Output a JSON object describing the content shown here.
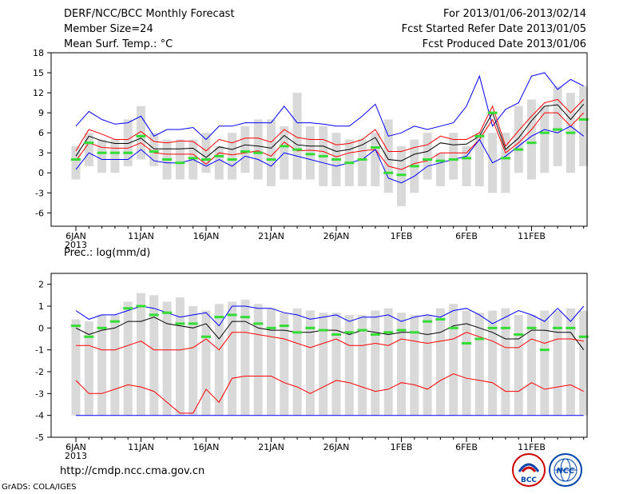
{
  "header": {
    "title": "DERF/NCC/BCC Monthly Forecast",
    "member_size": "Member Size=24",
    "variable": "Mean Surf. Temp.: °C",
    "period": "For 2013/01/06-2013/02/14",
    "started": "Fcst Started Refer Date 2013/01/05",
    "produced": "Fcst Produced Date 2013/01/06"
  },
  "footer": {
    "url": "http://cmdp.ncc.cma.gov.cn",
    "grads": "GrADS: COLA/IGES",
    "logo_left_text": "BCC",
    "logo_right_text": "NCC"
  },
  "colors": {
    "bar": "#d9d9d9",
    "max_line": "#0000ff",
    "min_line": "#0000ff",
    "upper_line": "#ff0000",
    "lower_line": "#ff0000",
    "mean_line": "#000000",
    "marker": "#33dd33"
  },
  "chart_data": [
    {
      "type": "bar",
      "title": "Mean Surf. Temp.: °C",
      "xlabel": "",
      "ylabel": "",
      "ylim": [
        -8,
        18
      ],
      "yticks": [
        -6,
        -3,
        0,
        3,
        6,
        9,
        12,
        15,
        18
      ],
      "x_ticks": [
        {
          "day": 1,
          "label": "6JAN",
          "year": "2013"
        },
        {
          "day": 6,
          "label": "11JAN"
        },
        {
          "day": 11,
          "label": "16JAN"
        },
        {
          "day": 16,
          "label": "21JAN"
        },
        {
          "day": 21,
          "label": "26JAN"
        },
        {
          "day": 26,
          "label": "1FEB"
        },
        {
          "day": 31,
          "label": "6FEB"
        },
        {
          "day": 36,
          "label": "11FEB"
        }
      ],
      "days": [
        1,
        2,
        3,
        4,
        5,
        6,
        7,
        8,
        9,
        10,
        11,
        12,
        13,
        14,
        15,
        16,
        17,
        18,
        19,
        20,
        21,
        22,
        23,
        24,
        25,
        26,
        27,
        28,
        29,
        30,
        31,
        32,
        33,
        34,
        35,
        36,
        37,
        38,
        39,
        40
      ],
      "bar_top": [
        4,
        6,
        5,
        5,
        8,
        10,
        6,
        5,
        5,
        5,
        6,
        4,
        6,
        7,
        8,
        8,
        7,
        12,
        7,
        7,
        6,
        5,
        5,
        6,
        8,
        4,
        5,
        6,
        3,
        6,
        4,
        6,
        6,
        6,
        10,
        11,
        10,
        13,
        12,
        13
      ],
      "bar_bottom": [
        -1,
        1,
        0,
        0,
        1,
        2,
        1,
        -1,
        -1,
        -1,
        0,
        -1,
        -1,
        0,
        -1,
        -2,
        -1,
        -1,
        -1,
        -2,
        -2,
        -2,
        -2,
        -2,
        -3,
        -5,
        -3,
        -1,
        -2,
        -1,
        -2,
        -2,
        -3,
        -3,
        0,
        -1,
        0,
        1,
        0,
        1
      ],
      "series": [
        {
          "name": "max",
          "color": "#0000ff",
          "values": [
            7.0,
            9.2,
            8.0,
            7.3,
            7.5,
            8.5,
            5.5,
            6.5,
            6.5,
            6.8,
            5.0,
            7.0,
            7.0,
            7.5,
            7.5,
            7.5,
            10.0,
            7.5,
            7.5,
            7.3,
            7.0,
            7.0,
            8.5,
            10.3,
            5.5,
            6.0,
            7.0,
            6.5,
            7.0,
            7.5,
            10.0,
            14.5,
            7.0,
            9.5,
            10.5,
            14.5,
            15.0,
            12.5,
            14.0,
            13.0
          ]
        },
        {
          "name": "upper",
          "color": "#ff0000",
          "values": [
            3.3,
            6.5,
            5.8,
            5.0,
            5.0,
            6.2,
            4.7,
            4.5,
            4.8,
            4.7,
            3.3,
            5.0,
            4.5,
            5.2,
            5.2,
            4.6,
            6.5,
            5.3,
            5.0,
            5.0,
            4.2,
            4.4,
            5.0,
            6.5,
            3.2,
            3.2,
            3.8,
            4.2,
            5.5,
            5.0,
            5.0,
            6.0,
            10.0,
            4.0,
            6.3,
            8.5,
            10.5,
            11.0,
            9.0,
            11.0
          ]
        },
        {
          "name": "mean",
          "color": "#000000",
          "values": [
            2.5,
            5.5,
            4.8,
            4.4,
            4.4,
            5.2,
            3.6,
            3.6,
            3.6,
            3.7,
            2.3,
            3.9,
            3.5,
            4.2,
            4.0,
            3.7,
            5.6,
            4.2,
            4.0,
            4.0,
            3.2,
            3.5,
            4.2,
            5.3,
            2.0,
            1.8,
            2.8,
            3.2,
            4.5,
            4.2,
            4.3,
            5.5,
            9.0,
            3.5,
            5.2,
            7.8,
            10.0,
            10.2,
            8.0,
            10.3
          ]
        },
        {
          "name": "lower",
          "color": "#ff0000",
          "values": [
            1.8,
            4.5,
            3.8,
            3.7,
            3.7,
            4.5,
            3.0,
            2.8,
            2.8,
            2.8,
            1.3,
            3.0,
            2.7,
            3.0,
            3.3,
            2.5,
            4.6,
            3.3,
            3.4,
            3.2,
            2.4,
            3.0,
            3.3,
            3.5,
            1.0,
            0.5,
            1.4,
            1.8,
            3.0,
            3.0,
            3.0,
            5.0,
            8.0,
            3.0,
            4.5,
            6.5,
            9.0,
            9.0,
            7.0,
            9.0
          ]
        },
        {
          "name": "min",
          "color": "#0000ff",
          "values": [
            0.5,
            3.0,
            2.0,
            2.0,
            2.0,
            3.5,
            1.8,
            1.5,
            1.5,
            2.0,
            1.0,
            2.0,
            1.0,
            2.5,
            2.0,
            1.0,
            3.0,
            2.5,
            2.0,
            1.5,
            1.0,
            1.5,
            2.0,
            3.5,
            -0.8,
            -1.5,
            -0.5,
            1.0,
            1.5,
            2.0,
            2.5,
            5.0,
            1.5,
            2.5,
            4.0,
            5.5,
            6.5,
            6.0,
            7.0,
            5.5
          ]
        }
      ],
      "markers": [
        2.0,
        4.5,
        3.0,
        3.0,
        3.0,
        5.5,
        3.2,
        2.0,
        1.5,
        2.2,
        2.0,
        2.5,
        2.0,
        3.2,
        3.0,
        2.0,
        4.0,
        3.5,
        2.8,
        2.5,
        2.0,
        1.5,
        2.0,
        3.8,
        0.0,
        -0.3,
        1.0,
        2.0,
        1.8,
        2.0,
        2.2,
        5.5,
        9.0,
        2.2,
        3.5,
        4.5,
        6.0,
        6.5,
        6.0,
        8.0
      ]
    },
    {
      "type": "bar",
      "title": "Prec.: log(mm/d)",
      "xlabel": "",
      "ylabel": "",
      "ylim": [
        -5,
        2.5
      ],
      "yticks": [
        -5,
        -4,
        -3,
        -2,
        -1,
        0,
        1,
        2
      ],
      "x_ticks": [
        {
          "day": 1,
          "label": "6JAN",
          "year": "2013"
        },
        {
          "day": 6,
          "label": "11JAN"
        },
        {
          "day": 11,
          "label": "16JAN"
        },
        {
          "day": 16,
          "label": "21JAN"
        },
        {
          "day": 21,
          "label": "26JAN"
        },
        {
          "day": 26,
          "label": "1FEB"
        },
        {
          "day": 31,
          "label": "6FEB"
        },
        {
          "day": 36,
          "label": "11FEB"
        }
      ],
      "days": [
        1,
        2,
        3,
        4,
        5,
        6,
        7,
        8,
        9,
        10,
        11,
        12,
        13,
        14,
        15,
        16,
        17,
        18,
        19,
        20,
        21,
        22,
        23,
        24,
        25,
        26,
        27,
        28,
        29,
        30,
        31,
        32,
        33,
        34,
        35,
        36,
        37,
        38,
        39,
        40
      ],
      "bar_top": [
        0.4,
        0.3,
        0.6,
        0.6,
        1.2,
        1.6,
        1.5,
        1.2,
        1.4,
        1.0,
        0.8,
        1.1,
        1.2,
        1.3,
        1.1,
        0.9,
        0.7,
        0.9,
        0.8,
        0.7,
        0.7,
        0.6,
        0.6,
        0.8,
        0.9,
        0.7,
        0.6,
        0.6,
        0.9,
        1.1,
        0.8,
        0.7,
        0.8,
        0.9,
        0.6,
        0.6,
        0.8,
        0.8,
        0.9,
        0.8
      ],
      "bar_bottom": [
        -4,
        -4,
        -4,
        -4,
        -4,
        -4,
        -4,
        -4,
        -4,
        -4,
        -4,
        -4,
        -4,
        -4,
        -4,
        -4,
        -4,
        -4,
        -4,
        -4,
        -4,
        -4,
        -4,
        -4,
        -4,
        -4,
        -4,
        -4,
        -4,
        -4,
        -4,
        -4,
        -4,
        -4,
        -4,
        -4,
        -4,
        -4,
        -4,
        -4
      ],
      "series": [
        {
          "name": "max",
          "color": "#0000ff",
          "values": [
            0.8,
            0.4,
            0.6,
            0.6,
            0.8,
            1.0,
            0.9,
            0.7,
            0.5,
            0.6,
            0.7,
            0.1,
            1.0,
            1.0,
            0.9,
            0.9,
            0.7,
            0.6,
            0.4,
            0.5,
            0.6,
            0.3,
            0.5,
            0.5,
            0.6,
            0.3,
            0.5,
            0.6,
            0.5,
            0.8,
            0.9,
            0.6,
            0.2,
            0.5,
            0.8,
            0.6,
            0.3,
            0.9,
            0.3,
            1.0
          ]
        },
        {
          "name": "mean",
          "color": "#000000",
          "values": [
            0.0,
            -0.3,
            -0.1,
            0.0,
            0.3,
            0.3,
            0.5,
            0.2,
            0.1,
            0.0,
            0.2,
            -0.5,
            0.3,
            0.3,
            0.0,
            -0.1,
            -0.1,
            -0.2,
            -0.2,
            -0.1,
            -0.1,
            -0.3,
            -0.1,
            -0.2,
            -0.3,
            -0.2,
            -0.2,
            -0.3,
            -0.2,
            0.1,
            0.2,
            0.0,
            -0.2,
            -0.5,
            -0.5,
            -0.1,
            -0.1,
            -0.2,
            -0.2,
            -1.0
          ]
        },
        {
          "name": "upper",
          "color": "#ff0000",
          "values": [
            -0.8,
            -0.8,
            -1.0,
            -1.0,
            -0.8,
            -0.6,
            -1.0,
            -1.0,
            -1.0,
            -0.9,
            -0.5,
            -1.0,
            -0.2,
            -0.2,
            -0.3,
            -0.4,
            -0.5,
            -0.7,
            -0.9,
            -0.7,
            -0.5,
            -0.8,
            -0.8,
            -0.7,
            -0.8,
            -0.5,
            -0.6,
            -0.7,
            -0.6,
            -0.5,
            -0.2,
            -0.4,
            -0.6,
            -0.9,
            -0.9,
            -0.5,
            -0.7,
            -0.5,
            -0.5,
            -0.6
          ]
        },
        {
          "name": "lower",
          "color": "#ff0000",
          "values": [
            -2.4,
            -3.0,
            -3.0,
            -2.8,
            -2.6,
            -2.7,
            -2.9,
            -3.4,
            -3.9,
            -3.9,
            -2.8,
            -3.4,
            -2.3,
            -2.2,
            -2.2,
            -2.2,
            -2.5,
            -2.7,
            -3.0,
            -2.7,
            -2.4,
            -2.5,
            -2.7,
            -2.9,
            -2.8,
            -2.5,
            -2.6,
            -2.8,
            -2.4,
            -2.1,
            -2.3,
            -2.4,
            -2.5,
            -2.9,
            -2.9,
            -2.5,
            -2.8,
            -2.7,
            -2.6,
            -2.9
          ]
        },
        {
          "name": "min",
          "color": "#0000ff",
          "values": [
            -4,
            -4,
            -4,
            -4,
            -4,
            -4,
            -4,
            -4,
            -4,
            -4,
            -4,
            -4,
            -4,
            -4,
            -4,
            -4,
            -4,
            -4,
            -4,
            -4,
            -4,
            -4,
            -4,
            -4,
            -4,
            -4,
            -4,
            -4,
            -4,
            -4,
            -4,
            -4,
            -4,
            -4,
            -4,
            -4,
            -4,
            -4,
            -4,
            -4
          ]
        }
      ],
      "markers": [
        0.1,
        -0.4,
        0.0,
        0.3,
        0.9,
        1.0,
        0.6,
        0.7,
        0.2,
        0.2,
        -0.4,
        0.5,
        0.6,
        0.5,
        0.2,
        0.0,
        0.1,
        -0.2,
        0.0,
        -0.1,
        -0.3,
        -0.2,
        -0.1,
        -0.3,
        -0.2,
        -0.1,
        -0.2,
        0.3,
        0.4,
        0.0,
        -0.7,
        -0.5,
        0.0,
        0.0,
        -0.3,
        0.0,
        -1.0,
        0.0,
        0.0,
        -0.4
      ]
    }
  ]
}
